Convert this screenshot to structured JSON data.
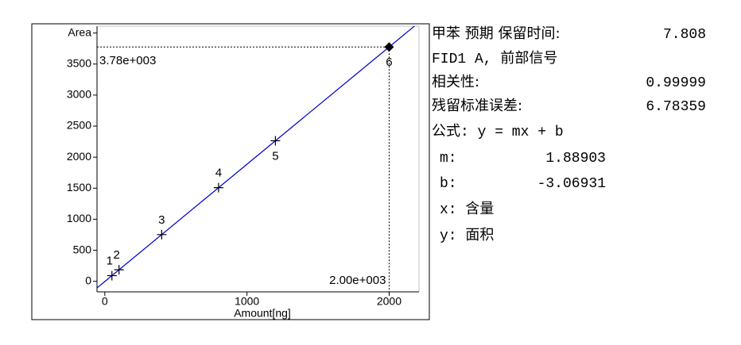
{
  "chart_data": {
    "type": "scatter",
    "x_label": "Amount[ng]",
    "x": [
      50,
      100,
      400,
      800,
      1200,
      2000
    ],
    "values": [
      91,
      186,
      752,
      1508,
      2264,
      3775
    ],
    "point_labels": [
      "1",
      "2",
      "3",
      "4",
      "5",
      "6"
    ],
    "color": "#000000",
    "fit_color": "#0000cc",
    "slope": 1.88903,
    "intercept": -3.06931,
    "highlight_index": 5,
    "highlight_x_label": "2.00e+003",
    "highlight_y_label": "3.78e+003",
    "xlim": [
      -55,
      2210
    ],
    "ylim": [
      -170,
      4110
    ],
    "xticks": [
      0,
      1000,
      2000
    ],
    "yticks": [
      0,
      500,
      1000,
      1500,
      2000,
      2500,
      3000,
      3500,
      {
        "value": 4000,
        "label": "Area"
      }
    ],
    "panel": {
      "retention_label": "甲苯 预期 保留时间:",
      "retention": 7.808,
      "signal": "FID1 A, 前部信号",
      "correlation_label": "相关性:",
      "correlation": 0.99999,
      "residual_label": "残留标准误差:",
      "residual": 6.78359,
      "formula": "公式: y = mx + b",
      "m_label": "m:",
      "b_label": "b:",
      "x_desc": "x: 含量",
      "y_desc": "y: 面积"
    }
  }
}
